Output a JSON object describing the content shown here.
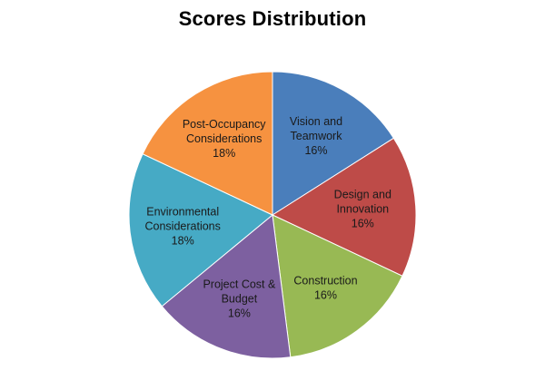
{
  "chart_data": {
    "type": "pie",
    "title": "Scores Distribution",
    "slices": [
      {
        "label_lines": [
          "Vision and",
          "Teamwork"
        ],
        "name": "Vision and Teamwork",
        "value": 16,
        "value_label": "16%",
        "color": "#4A7EBB"
      },
      {
        "label_lines": [
          "Design and",
          "Innovation"
        ],
        "name": "Design and Innovation",
        "value": 16,
        "value_label": "16%",
        "color": "#BE4B48"
      },
      {
        "label_lines": [
          "Construction"
        ],
        "name": "Construction",
        "value": 16,
        "value_label": "16%",
        "color": "#98B954"
      },
      {
        "label_lines": [
          "Project Cost &",
          "Budget"
        ],
        "name": "Project Cost & Budget",
        "value": 16,
        "value_label": "16%",
        "color": "#7D60A0"
      },
      {
        "label_lines": [
          "Environmental",
          "Considerations"
        ],
        "name": "Environmental Considerations",
        "value": 18,
        "value_label": "18%",
        "color": "#46AAC5"
      },
      {
        "label_lines": [
          "Post-Occupancy",
          "Considerations"
        ],
        "name": "Post-Occupancy Considerations",
        "value": 18,
        "value_label": "18%",
        "color": "#F69240"
      }
    ],
    "start_angle": "12 o'clock",
    "direction": "clockwise",
    "legend": "none"
  }
}
